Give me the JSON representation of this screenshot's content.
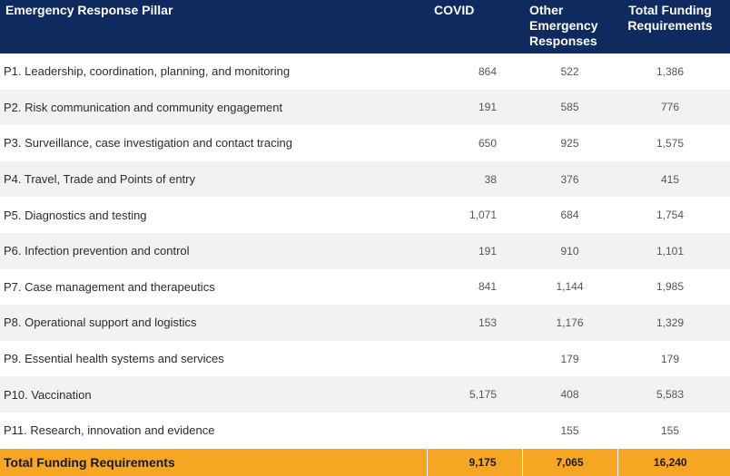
{
  "header": {
    "pillar": "Emergency Response Pillar",
    "covid": "COVID",
    "other": "Other Emergency Responses",
    "total": "Total Funding Requirements"
  },
  "rows": [
    {
      "pillar": "P1. Leadership, coordination, planning, and monitoring",
      "covid": "864",
      "other": "522",
      "total": "1,386"
    },
    {
      "pillar": "P2. Risk communication and community engagement",
      "covid": "191",
      "other": "585",
      "total": "776"
    },
    {
      "pillar": "P3. Surveillance, case investigation and contact tracing",
      "covid": "650",
      "other": "925",
      "total": "1,575"
    },
    {
      "pillar": "P4. Travel, Trade and Points of entry",
      "covid": "38",
      "other": "376",
      "total": "415"
    },
    {
      "pillar": "P5. Diagnostics and testing",
      "covid": "1,071",
      "other": "684",
      "total": "1,754"
    },
    {
      "pillar": "P6. Infection prevention and control",
      "covid": "191",
      "other": "910",
      "total": "1,101"
    },
    {
      "pillar": "P7. Case management and therapeutics",
      "covid": "841",
      "other": "1,144",
      "total": "1,985"
    },
    {
      "pillar": "P8. Operational support and logistics",
      "covid": "153",
      "other": "1,176",
      "total": "1,329"
    },
    {
      "pillar": "P9. Essential health systems and services",
      "covid": "",
      "other": "179",
      "total": "179"
    },
    {
      "pillar": "P10. Vaccination",
      "covid": "5,175",
      "other": "408",
      "total": "5,583"
    },
    {
      "pillar": "P11. Research, innovation and evidence",
      "covid": "",
      "other": "155",
      "total": "155"
    }
  ],
  "footer": {
    "label": "Total Funding Requirements",
    "covid": "9,175",
    "other": "7,065",
    "total": "16,240"
  },
  "colors": {
    "header_bg": "#0f2a5f",
    "footer_bg": "#f6a623",
    "stripe": "#f2f2f2"
  }
}
